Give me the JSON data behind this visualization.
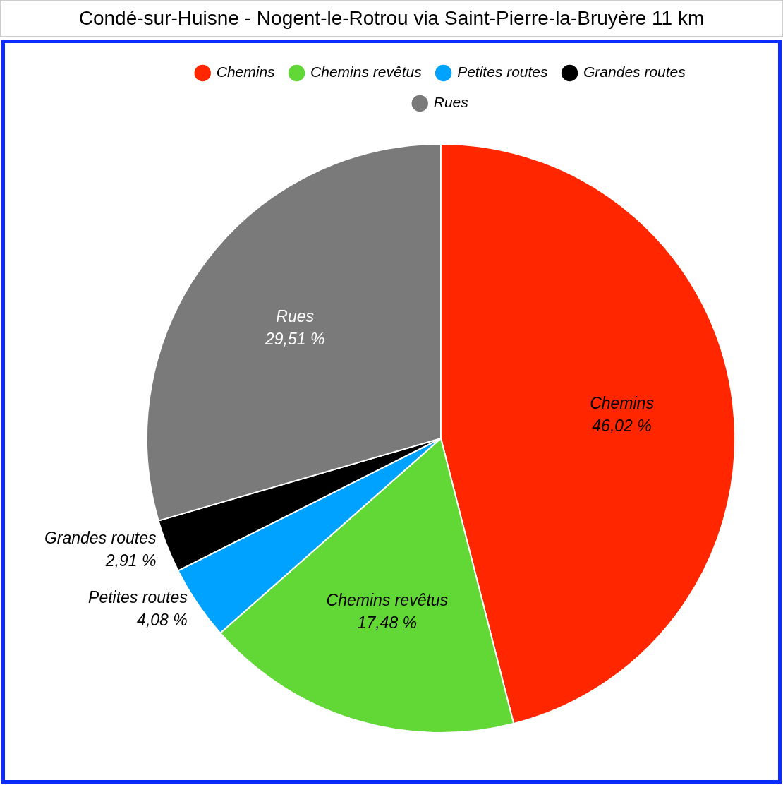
{
  "chart_data": {
    "type": "pie",
    "title": "Condé-sur-Huisne - Nogent-le-Rotrou via Saint-Pierre-la-Bruyère 11 km",
    "categories": [
      "Chemins",
      "Chemins revêtus",
      "Petites routes",
      "Grandes routes",
      "Rues"
    ],
    "values": [
      46.02,
      17.48,
      4.08,
      2.91,
      29.51
    ],
    "colors": [
      "#ff2600",
      "#61d836",
      "#00a2ff",
      "#000000",
      "#7a7a7a"
    ],
    "value_labels": [
      "46,02 %",
      "17,48 %",
      "4,08 %",
      "2,91 %",
      "29,51 %"
    ],
    "legend": "top"
  }
}
